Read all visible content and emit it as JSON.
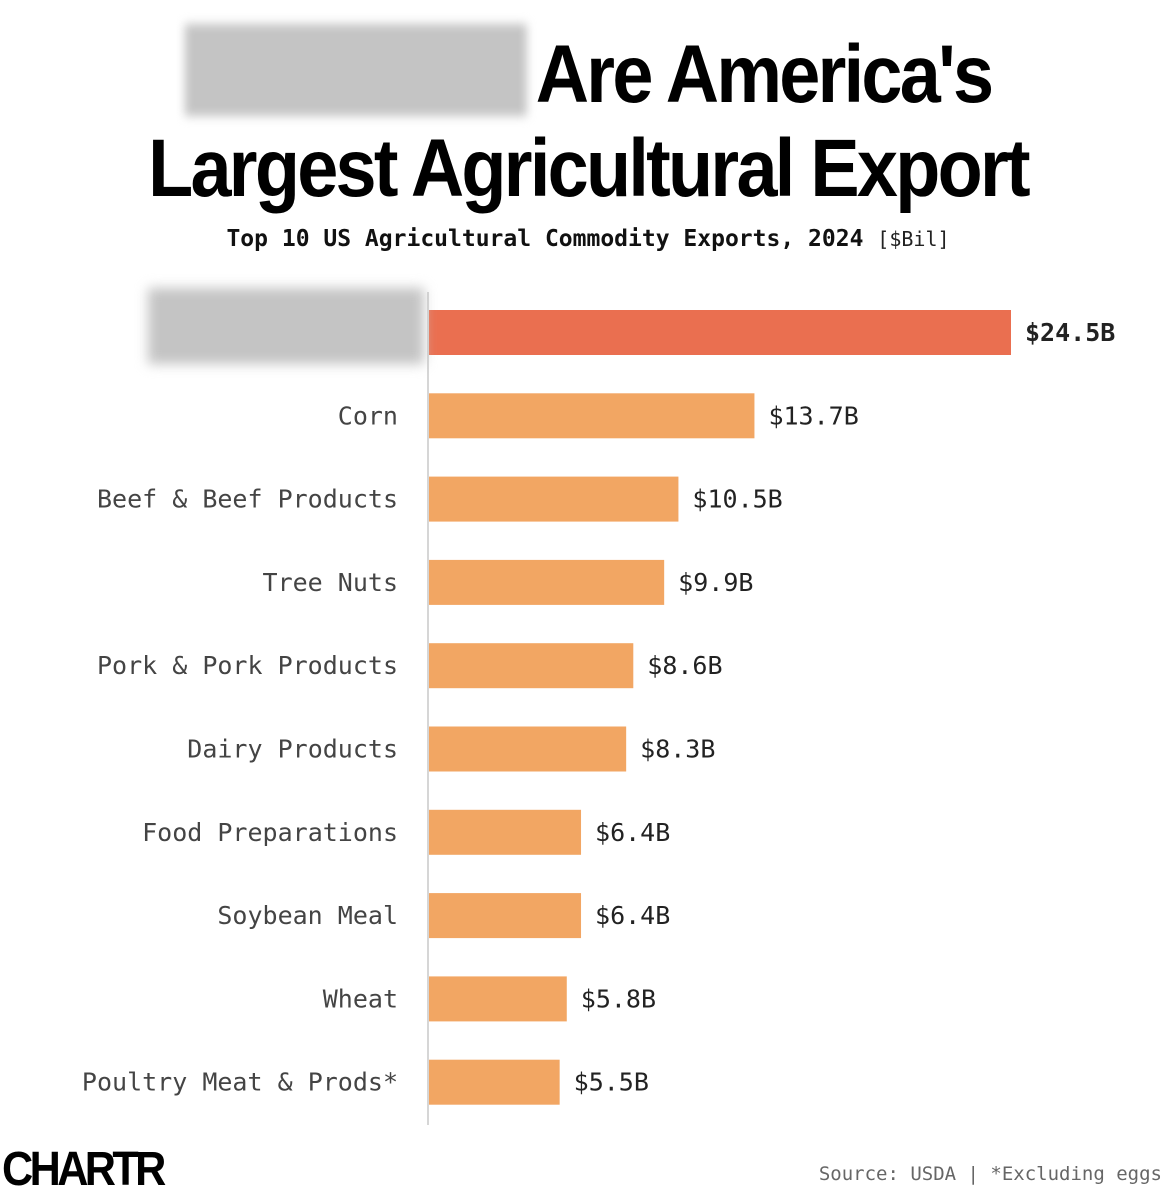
{
  "title_line1": "Are America's",
  "title_line2": "Largest Agricultural Export",
  "subtitle": "Top 10 US Agricultural Commodity Exports, 2024",
  "subtitle_unit": "[$Bil]",
  "logo": "CHARTR",
  "source": "Source: USDA | *Excluding eggs",
  "colors": {
    "highlight": "#ea6f50",
    "bar": "#f2a663",
    "axis": "#d6d6d6"
  },
  "chart_data": {
    "type": "bar",
    "orientation": "horizontal",
    "categories": [
      "",
      "Corn",
      "Beef & Beef Products",
      "Tree Nuts",
      "Pork & Pork Products",
      "Dairy Products",
      "Food Preparations",
      "Soybean Meal",
      "Wheat",
      "Poultry Meat & Prods*"
    ],
    "values": [
      24.5,
      13.7,
      10.5,
      9.9,
      8.6,
      8.3,
      6.4,
      6.4,
      5.8,
      5.5
    ],
    "labels": [
      "$24.5B",
      "$13.7B",
      "$10.5B",
      "$9.9B",
      "$8.6B",
      "$8.3B",
      "$6.4B",
      "$6.4B",
      "$5.8B",
      "$5.5B"
    ],
    "xlim": [
      0,
      24.5
    ],
    "grid": false
  }
}
